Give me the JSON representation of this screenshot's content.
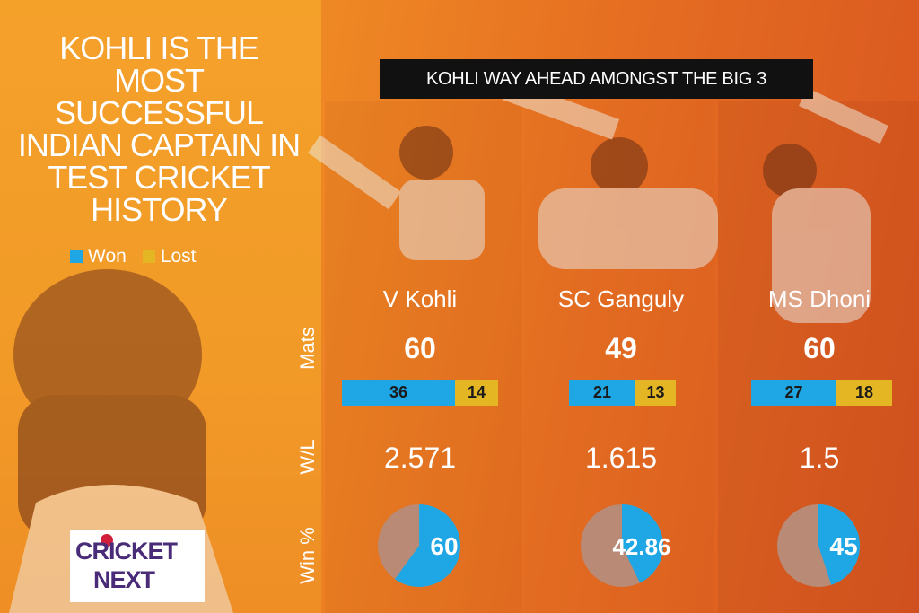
{
  "headline": "KOHLI IS THE MOST SUCCESSFUL INDIAN CAPTAIN IN TEST CRICKET HISTORY",
  "banner": "KOHLI WAY AHEAD AMONGST THE BIG 3",
  "legend": {
    "won": "Won",
    "lost": "Lost"
  },
  "colors": {
    "won": "#1ea6e5",
    "lost": "#e5b624",
    "pie_rest": "#b98a75"
  },
  "row_labels": {
    "mats": "Mats",
    "wl": "W/L",
    "winpct": "Win %"
  },
  "logo": {
    "line1": "CRICKET",
    "line2": "NEXT"
  },
  "chart_data": {
    "type": "table",
    "title": "KOHLI WAY AHEAD AMONGST THE BIG 3",
    "series_names": [
      "Won",
      "Lost"
    ],
    "players": [
      {
        "name": "V Kohli",
        "mats": 60,
        "won": 36,
        "lost": 14,
        "wl": "2.571",
        "win_pct": 60,
        "win_pct_label": "60"
      },
      {
        "name": "SC Ganguly",
        "mats": 49,
        "won": 21,
        "lost": 13,
        "wl": "1.615",
        "win_pct": 42.86,
        "win_pct_label": "42.86"
      },
      {
        "name": "MS Dhoni",
        "mats": 60,
        "won": 27,
        "lost": 18,
        "wl": "1.5",
        "win_pct": 45,
        "win_pct_label": "45"
      }
    ]
  }
}
